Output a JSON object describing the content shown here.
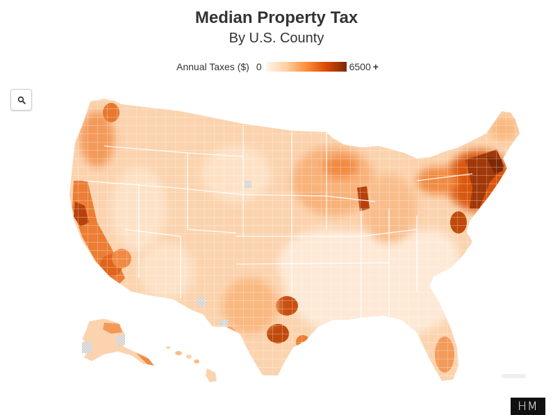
{
  "header": {
    "title": "Median Property Tax",
    "subtitle": "By U.S. County"
  },
  "legend": {
    "label": "Annual Taxes ($)",
    "min": "0",
    "max": "6500",
    "max_suffix": "+",
    "colors": [
      "#fff5eb",
      "#fdd0a2",
      "#fd8d3c",
      "#d94801",
      "#7f2704"
    ]
  },
  "controls": {
    "search_icon": "search-icon"
  },
  "map": {
    "no_data_color": "#dddddd",
    "background_color": "#fbd3ae"
  },
  "footer": {
    "logo_text": "HM"
  }
}
